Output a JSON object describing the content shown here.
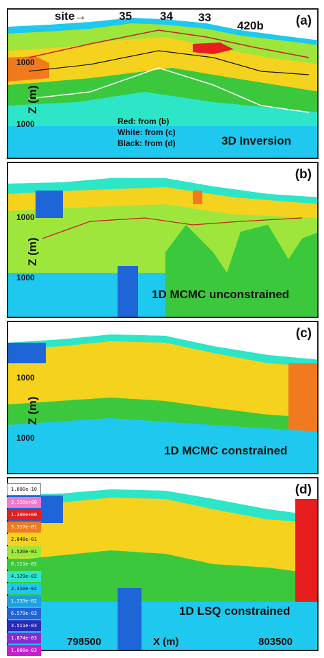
{
  "panels": [
    {
      "id": "a",
      "label": "(a)",
      "title": "3D Inversion"
    },
    {
      "id": "b",
      "label": "(b)",
      "title": "1D MCMC unconstrained"
    },
    {
      "id": "c",
      "label": "(c)",
      "title": "1D MCMC constrained"
    },
    {
      "id": "d",
      "label": "(d)",
      "title": "1D LSQ constrained"
    }
  ],
  "sites": {
    "prefix": "site",
    "arrow": "→",
    "labels": [
      "35",
      "34",
      "33",
      "420b"
    ]
  },
  "annotations": {
    "red": "Red: from (b)",
    "white": "White: from (c)",
    "black": "Black: from (d)"
  },
  "axes": {
    "z_label": "Z (m)",
    "x_label": "X (m)",
    "depth_tick_top": "1000",
    "depth_tick_bottom": "1000",
    "x_ticks": [
      "798500",
      "803500"
    ]
  },
  "legend": [
    "1.000e-10",
    "3.220e+00",
    "1.300e+00",
    "5.337e-01",
    "2.848e-01",
    "1.520e-01",
    "8.111e-02",
    "4.329e-02",
    "2.310e-02",
    "1.233e-02",
    "6.579e-03",
    "3.511e-03",
    "1.874e-03",
    "1.000e-03"
  ],
  "colors": {
    "blue": "#1e66d8",
    "cyan": "#1ec8ee",
    "teal": "#2de6c8",
    "green": "#3cc83c",
    "lgreen": "#9ee63c",
    "yellow": "#f5d21e",
    "orange": "#f27a1e",
    "red": "#e81e1e"
  }
}
